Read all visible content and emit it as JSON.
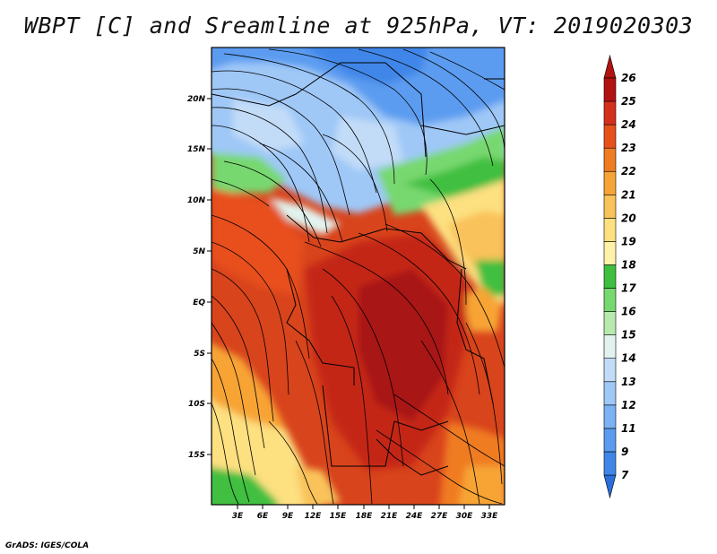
{
  "title": "WBPT [C] and Sreamline at 925hPa, VT: 2019020303",
  "credit": "GrADS: IGES/COLA",
  "axes": {
    "lat_labels": [
      "20N",
      "15N",
      "10N",
      "5N",
      "EQ",
      "5S",
      "10S",
      "15S"
    ],
    "lon_labels": [
      "3E",
      "6E",
      "9E",
      "12E",
      "15E",
      "18E",
      "21E",
      "24E",
      "27E",
      "30E",
      "33E"
    ]
  },
  "colorbar": {
    "labels": [
      "7",
      "9",
      "11",
      "12",
      "13",
      "14",
      "15",
      "16",
      "17",
      "18",
      "19",
      "20",
      "21",
      "22",
      "23",
      "24",
      "25",
      "26"
    ],
    "colors": [
      "#2a6fdb",
      "#3f86e8",
      "#5c9cf0",
      "#7cb2f4",
      "#9fc8f7",
      "#c2dcf8",
      "#e2f3ef",
      "#b8eab0",
      "#78d870",
      "#3fbf3f",
      "#fdf2a8",
      "#fde080",
      "#f9c25a",
      "#f7a436",
      "#f07c22",
      "#e8501a",
      "#d4301a",
      "#b21212"
    ]
  },
  "legend": {
    "variable": "WBPT [C]",
    "overlay": "Streamline",
    "level": "925hPa"
  }
}
